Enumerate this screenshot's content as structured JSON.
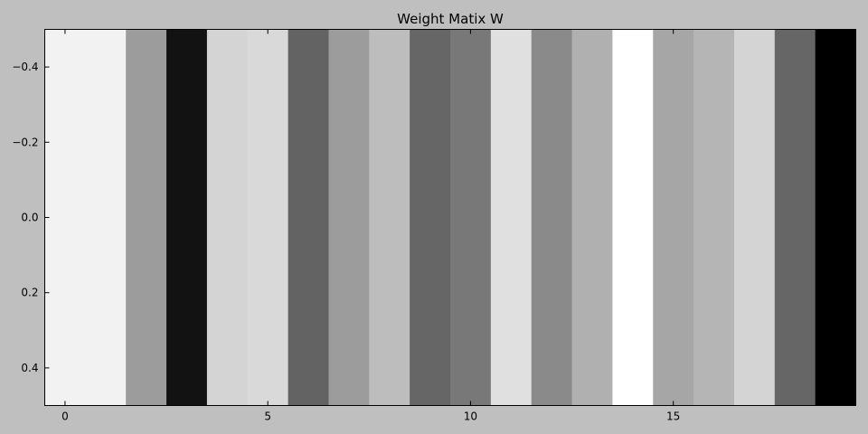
{
  "chart_data": {
    "type": "heatmap",
    "title": "Weight Matix W",
    "xlabel": "",
    "ylabel": "",
    "colormap": "gray",
    "columns": 20,
    "rows": 1,
    "xlim": [
      -0.5,
      19.5
    ],
    "ylim": [
      0.5,
      -0.5
    ],
    "x_ticks": [
      0,
      5,
      10,
      15
    ],
    "x_tick_labels": [
      "0",
      "5",
      "10",
      "15"
    ],
    "y_ticks": [
      -0.4,
      -0.2,
      0.0,
      0.2,
      0.4
    ],
    "y_tick_labels": [
      "−0.4",
      "−0.2",
      "0.0",
      "0.2",
      "0.4"
    ],
    "values": [
      0.95,
      0.95,
      0.61,
      0.07,
      0.83,
      0.85,
      0.39,
      0.61,
      0.74,
      0.4,
      0.47,
      0.88,
      0.54,
      0.69,
      1.0,
      0.65,
      0.71,
      0.83,
      0.4,
      0.0
    ],
    "grid": false
  },
  "colors": {
    "background": "#bfbfbf",
    "axes_frame": "#000000"
  }
}
